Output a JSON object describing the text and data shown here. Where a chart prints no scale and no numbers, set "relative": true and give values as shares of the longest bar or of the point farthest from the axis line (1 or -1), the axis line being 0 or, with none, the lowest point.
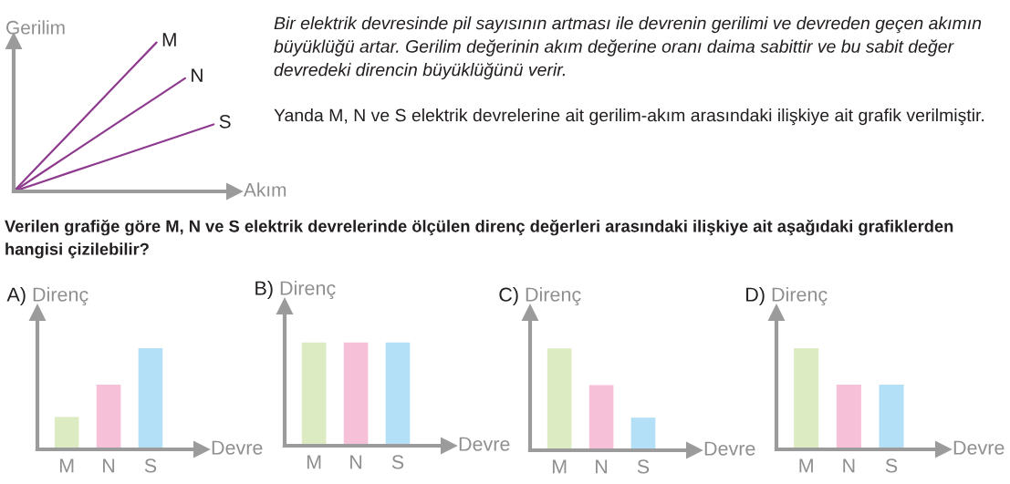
{
  "chart_data": [
    {
      "type": "line",
      "relative": true,
      "xlabel": "Akım",
      "ylabel": "Gerilim",
      "categories": [
        null,
        null,
        null,
        null,
        null,
        null,
        null,
        null
      ],
      "series": [
        {
          "name": "M",
          "color": "#8e3a8e",
          "values": [
            0,
            0.2,
            0.4,
            0.6,
            0.8,
            1,
            null,
            null
          ]
        },
        {
          "name": "N",
          "color": "#8e3a8e",
          "values": [
            0,
            0.127,
            0.253,
            0.38,
            0.507,
            0.633,
            0.76,
            null
          ]
        },
        {
          "name": "S",
          "color": "#8e3a8e",
          "values": [
            0,
            0.064,
            0.129,
            0.193,
            0.257,
            0.321,
            0.386,
            0.45
          ]
        }
      ]
    },
    {
      "type": "other",
      "annotations": [
        "Bir elektrik devresinde pil sayısının artması ile devrenin gerilimi ve devreden geçen akımın büyüklüğü artar. Gerilim değerinin akım değerine oranı daima sabittir ve bu sabit değer devredeki direncin büyüklüğünü verir.",
        "Yanda M, N ve S elektrik devrelerine ait gerilim-akım arasındaki ilişkiye ait grafik verilmiştir."
      ]
    },
    {
      "type": "other",
      "title": "Verilen grafiğe göre M, N ve S elektrik devrelerinde ölçülen direnç değerleri arasındaki ilişkiye ait aşağıdaki grafiklerden hangisi çizilebilir?"
    },
    {
      "type": "bar",
      "relative": true,
      "title": "A)",
      "ylabel": "Direnç",
      "xlabel": "Devre",
      "categories": [
        "M",
        "N",
        "S"
      ],
      "values": [
        0.32,
        0.64,
        1
      ],
      "colors": [
        "#dcebc1",
        "#f7c0d9",
        "#b3e0f7"
      ]
    },
    {
      "type": "bar",
      "relative": true,
      "title": "B)",
      "ylabel": "Direnç",
      "xlabel": "Devre",
      "categories": [
        "M",
        "N",
        "S"
      ],
      "values": [
        1,
        1,
        1
      ],
      "colors": [
        "#dcebc1",
        "#f7c0d9",
        "#b3e0f7"
      ]
    },
    {
      "type": "bar",
      "relative": true,
      "title": "C)",
      "ylabel": "Direnç",
      "xlabel": "Devre",
      "categories": [
        "M",
        "N",
        "S"
      ],
      "values": [
        1,
        0.64,
        0.32
      ],
      "colors": [
        "#dcebc1",
        "#f7c0d9",
        "#b3e0f7"
      ]
    },
    {
      "type": "bar",
      "relative": true,
      "title": "D)",
      "ylabel": "Direnç",
      "xlabel": "Devre",
      "categories": [
        "M",
        "N",
        "S"
      ],
      "values": [
        1,
        0.64,
        0.64
      ],
      "colors": [
        "#dcebc1",
        "#f7c0d9",
        "#b3e0f7"
      ]
    }
  ]
}
